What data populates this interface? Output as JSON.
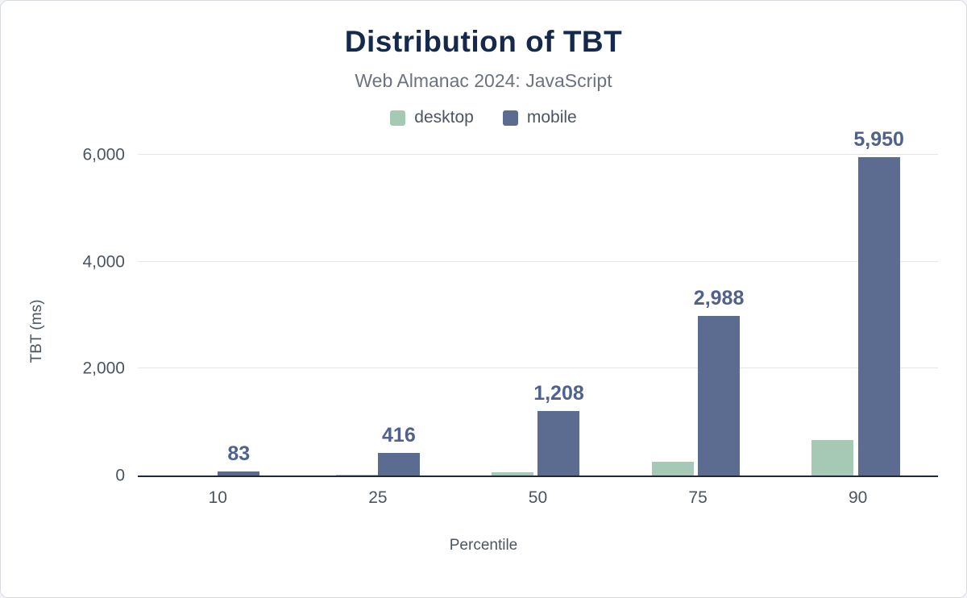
{
  "title": "Distribution of TBT",
  "subtitle": "Web Almanac 2024: JavaScript",
  "legend": [
    {
      "label": "desktop",
      "color": "#a5c9b5"
    },
    {
      "label": "mobile",
      "color": "#5b6c90"
    }
  ],
  "chart_data": {
    "type": "bar",
    "title": "Distribution of TBT",
    "subtitle": "Web Almanac 2024: JavaScript",
    "categories": [
      "10",
      "25",
      "50",
      "75",
      "90"
    ],
    "series": [
      {
        "name": "desktop",
        "color": "#a5c9b5",
        "values": [
          0,
          10,
          65,
          250,
          670
        ],
        "labels": [
          "",
          "",
          "",
          "",
          ""
        ],
        "labels_visible": false
      },
      {
        "name": "mobile",
        "color": "#5b6c90",
        "values": [
          83,
          416,
          1208,
          2988,
          5950
        ],
        "labels": [
          "83",
          "416",
          "1,208",
          "2,988",
          "5,950"
        ],
        "labels_visible": true
      }
    ],
    "xlabel": "Percentile",
    "ylabel": "TBT (ms)",
    "ylim": [
      0,
      6000
    ],
    "yticks": [
      0,
      2000,
      4000,
      6000
    ],
    "ytick_labels": [
      "0",
      "2,000",
      "4,000",
      "6,000"
    ],
    "grid": true,
    "legend_position": "top",
    "value_label_color": "#4f618e"
  },
  "colors": {
    "background": "#ffffff",
    "border": "#d8dce1",
    "title": "#15294d",
    "subtitle": "#6b7280",
    "axis_text": "#4a5560",
    "grid": "#e5e7ea",
    "axis_line": "#1f2937"
  }
}
